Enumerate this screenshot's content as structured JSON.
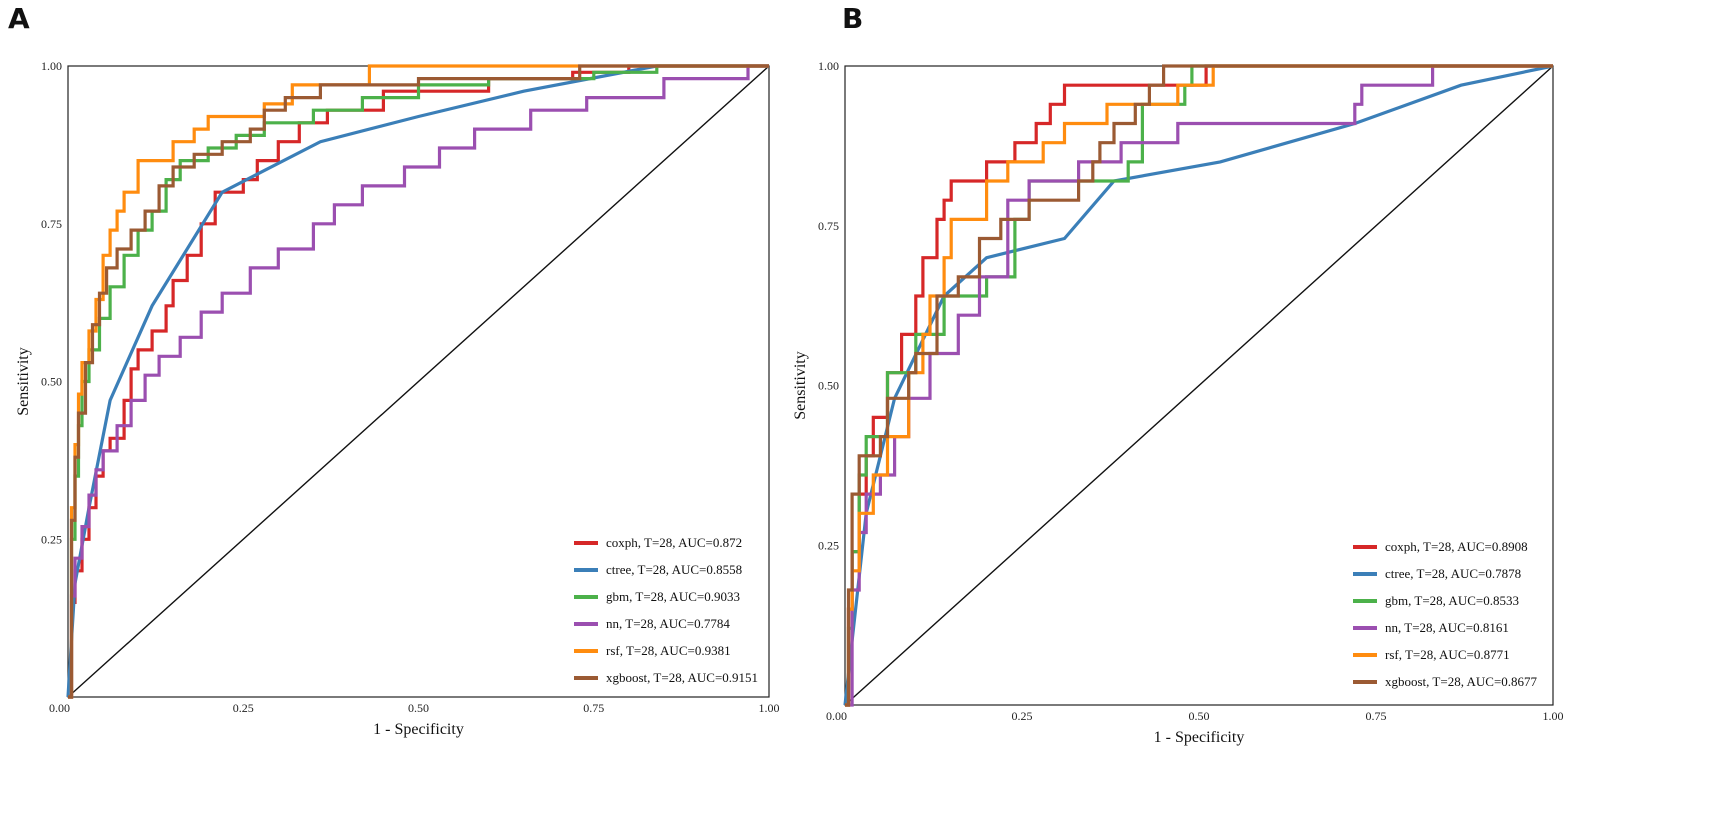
{
  "colors": {
    "coxph": "#d62728",
    "ctree": "#3b7fb8",
    "gbm": "#4cb14a",
    "nn": "#9b4fb0",
    "rsf": "#ff8c0f",
    "xgboost": "#9b5a33"
  },
  "chart_data": [
    {
      "panel": "A",
      "type": "line",
      "xlabel": "1 - Specificity",
      "ylabel": "Sensitivity",
      "xlim": [
        0,
        1
      ],
      "ylim": [
        0,
        1
      ],
      "xticks": [
        "0.00",
        "0.25",
        "0.50",
        "0.75",
        "1.00"
      ],
      "yticks": [
        "0.25",
        "0.50",
        "0.75",
        "1.00"
      ],
      "legend_position": "bottom-right",
      "series": [
        {
          "name": "coxph",
          "label": "coxph, T=28, AUC=0.872",
          "step": true,
          "points": [
            [
              0,
              0
            ],
            [
              0.005,
              0.15
            ],
            [
              0.01,
              0.2
            ],
            [
              0.02,
              0.25
            ],
            [
              0.03,
              0.3
            ],
            [
              0.04,
              0.35
            ],
            [
              0.05,
              0.39
            ],
            [
              0.06,
              0.41
            ],
            [
              0.08,
              0.47
            ],
            [
              0.09,
              0.52
            ],
            [
              0.1,
              0.55
            ],
            [
              0.12,
              0.58
            ],
            [
              0.14,
              0.62
            ],
            [
              0.15,
              0.66
            ],
            [
              0.17,
              0.7
            ],
            [
              0.19,
              0.75
            ],
            [
              0.21,
              0.8
            ],
            [
              0.25,
              0.82
            ],
            [
              0.27,
              0.85
            ],
            [
              0.3,
              0.88
            ],
            [
              0.33,
              0.91
            ],
            [
              0.37,
              0.93
            ],
            [
              0.45,
              0.96
            ],
            [
              0.6,
              0.98
            ],
            [
              0.72,
              0.99
            ],
            [
              0.8,
              1.0
            ],
            [
              1,
              1
            ]
          ]
        },
        {
          "name": "ctree",
          "label": "ctree, T=28, AUC=0.8558",
          "step": false,
          "points": [
            [
              0,
              0
            ],
            [
              0.01,
              0.18
            ],
            [
              0.03,
              0.3
            ],
            [
              0.06,
              0.47
            ],
            [
              0.12,
              0.62
            ],
            [
              0.22,
              0.8
            ],
            [
              0.36,
              0.88
            ],
            [
              0.5,
              0.92
            ],
            [
              0.65,
              0.96
            ],
            [
              0.84,
              1.0
            ],
            [
              1,
              1
            ]
          ]
        },
        {
          "name": "gbm",
          "label": "gbm, T=28, AUC=0.9033",
          "step": true,
          "points": [
            [
              0,
              0
            ],
            [
              0.005,
              0.25
            ],
            [
              0.01,
              0.35
            ],
            [
              0.015,
              0.43
            ],
            [
              0.02,
              0.5
            ],
            [
              0.03,
              0.55
            ],
            [
              0.045,
              0.6
            ],
            [
              0.06,
              0.65
            ],
            [
              0.08,
              0.7
            ],
            [
              0.1,
              0.74
            ],
            [
              0.12,
              0.77
            ],
            [
              0.14,
              0.82
            ],
            [
              0.16,
              0.85
            ],
            [
              0.2,
              0.87
            ],
            [
              0.24,
              0.89
            ],
            [
              0.28,
              0.91
            ],
            [
              0.35,
              0.93
            ],
            [
              0.42,
              0.95
            ],
            [
              0.5,
              0.97
            ],
            [
              0.6,
              0.98
            ],
            [
              0.75,
              0.99
            ],
            [
              0.84,
              1.0
            ],
            [
              1,
              1
            ]
          ]
        },
        {
          "name": "nn",
          "label": "nn, T=28, AUC=0.7784",
          "step": true,
          "points": [
            [
              0,
              0
            ],
            [
              0.005,
              0.16
            ],
            [
              0.01,
              0.22
            ],
            [
              0.02,
              0.27
            ],
            [
              0.03,
              0.32
            ],
            [
              0.04,
              0.36
            ],
            [
              0.05,
              0.39
            ],
            [
              0.07,
              0.43
            ],
            [
              0.09,
              0.47
            ],
            [
              0.11,
              0.51
            ],
            [
              0.13,
              0.54
            ],
            [
              0.16,
              0.57
            ],
            [
              0.19,
              0.61
            ],
            [
              0.22,
              0.64
            ],
            [
              0.26,
              0.68
            ],
            [
              0.3,
              0.71
            ],
            [
              0.35,
              0.75
            ],
            [
              0.38,
              0.78
            ],
            [
              0.42,
              0.81
            ],
            [
              0.48,
              0.84
            ],
            [
              0.53,
              0.87
            ],
            [
              0.58,
              0.9
            ],
            [
              0.66,
              0.93
            ],
            [
              0.74,
              0.95
            ],
            [
              0.85,
              0.98
            ],
            [
              0.97,
              1.0
            ],
            [
              1,
              1
            ]
          ]
        },
        {
          "name": "rsf",
          "label": "rsf, T=28, AUC=0.9381",
          "step": true,
          "points": [
            [
              0,
              0
            ],
            [
              0.005,
              0.3
            ],
            [
              0.01,
              0.4
            ],
            [
              0.015,
              0.48
            ],
            [
              0.02,
              0.53
            ],
            [
              0.03,
              0.58
            ],
            [
              0.04,
              0.63
            ],
            [
              0.05,
              0.7
            ],
            [
              0.06,
              0.74
            ],
            [
              0.07,
              0.77
            ],
            [
              0.08,
              0.8
            ],
            [
              0.1,
              0.85
            ],
            [
              0.15,
              0.88
            ],
            [
              0.18,
              0.9
            ],
            [
              0.2,
              0.92
            ],
            [
              0.28,
              0.94
            ],
            [
              0.32,
              0.97
            ],
            [
              0.43,
              1.0
            ],
            [
              1,
              1
            ]
          ]
        },
        {
          "name": "xgboost",
          "label": "xgboost, T=28, AUC=0.9151",
          "step": true,
          "points": [
            [
              0,
              0
            ],
            [
              0.005,
              0.28
            ],
            [
              0.01,
              0.38
            ],
            [
              0.015,
              0.45
            ],
            [
              0.025,
              0.53
            ],
            [
              0.035,
              0.59
            ],
            [
              0.045,
              0.64
            ],
            [
              0.055,
              0.68
            ],
            [
              0.07,
              0.71
            ],
            [
              0.09,
              0.74
            ],
            [
              0.11,
              0.77
            ],
            [
              0.13,
              0.81
            ],
            [
              0.15,
              0.84
            ],
            [
              0.18,
              0.86
            ],
            [
              0.22,
              0.88
            ],
            [
              0.26,
              0.9
            ],
            [
              0.28,
              0.93
            ],
            [
              0.31,
              0.95
            ],
            [
              0.36,
              0.97
            ],
            [
              0.5,
              0.98
            ],
            [
              0.73,
              1.0
            ],
            [
              1,
              1
            ]
          ]
        }
      ]
    },
    {
      "panel": "B",
      "type": "line",
      "xlabel": "1 - Specificity",
      "ylabel": "Sensitivity",
      "xlim": [
        0,
        1
      ],
      "ylim": [
        0,
        1
      ],
      "xticks": [
        "0.00",
        "0.25",
        "0.50",
        "0.75",
        "1.00"
      ],
      "yticks": [
        "0.25",
        "0.50",
        "0.75",
        "1.00"
      ],
      "legend_position": "bottom-right",
      "series": [
        {
          "name": "coxph",
          "label": "coxph, T=28, AUC=0.8908",
          "step": true,
          "points": [
            [
              0,
              0
            ],
            [
              0.005,
              0.15
            ],
            [
              0.01,
              0.24
            ],
            [
              0.02,
              0.33
            ],
            [
              0.03,
              0.39
            ],
            [
              0.04,
              0.45
            ],
            [
              0.06,
              0.52
            ],
            [
              0.08,
              0.58
            ],
            [
              0.1,
              0.64
            ],
            [
              0.11,
              0.7
            ],
            [
              0.13,
              0.76
            ],
            [
              0.14,
              0.79
            ],
            [
              0.15,
              0.82
            ],
            [
              0.2,
              0.85
            ],
            [
              0.24,
              0.88
            ],
            [
              0.27,
              0.91
            ],
            [
              0.29,
              0.94
            ],
            [
              0.31,
              0.97
            ],
            [
              0.51,
              1.0
            ],
            [
              1,
              1
            ]
          ]
        },
        {
          "name": "ctree",
          "label": "ctree, T=28, AUC=0.7878",
          "step": false,
          "points": [
            [
              0,
              0
            ],
            [
              0.03,
              0.3
            ],
            [
              0.07,
              0.48
            ],
            [
              0.14,
              0.64
            ],
            [
              0.2,
              0.7
            ],
            [
              0.31,
              0.73
            ],
            [
              0.38,
              0.82
            ],
            [
              0.53,
              0.85
            ],
            [
              0.72,
              0.91
            ],
            [
              0.87,
              0.97
            ],
            [
              1,
              1
            ]
          ]
        },
        {
          "name": "gbm",
          "label": "gbm, T=28, AUC=0.8533",
          "step": true,
          "points": [
            [
              0,
              0
            ],
            [
              0.005,
              0.12
            ],
            [
              0.01,
              0.24
            ],
            [
              0.02,
              0.36
            ],
            [
              0.03,
              0.42
            ],
            [
              0.06,
              0.52
            ],
            [
              0.1,
              0.58
            ],
            [
              0.14,
              0.64
            ],
            [
              0.2,
              0.67
            ],
            [
              0.24,
              0.76
            ],
            [
              0.26,
              0.82
            ],
            [
              0.4,
              0.85
            ],
            [
              0.42,
              0.94
            ],
            [
              0.48,
              0.97
            ],
            [
              0.49,
              1.0
            ],
            [
              1,
              1
            ]
          ]
        },
        {
          "name": "nn",
          "label": "nn, T=28, AUC=0.8161",
          "step": true,
          "points": [
            [
              0,
              0
            ],
            [
              0.01,
              0.18
            ],
            [
              0.02,
              0.27
            ],
            [
              0.03,
              0.33
            ],
            [
              0.05,
              0.36
            ],
            [
              0.07,
              0.42
            ],
            [
              0.09,
              0.48
            ],
            [
              0.12,
              0.55
            ],
            [
              0.16,
              0.61
            ],
            [
              0.19,
              0.67
            ],
            [
              0.23,
              0.79
            ],
            [
              0.26,
              0.82
            ],
            [
              0.33,
              0.85
            ],
            [
              0.39,
              0.88
            ],
            [
              0.47,
              0.91
            ],
            [
              0.72,
              0.94
            ],
            [
              0.73,
              0.97
            ],
            [
              0.83,
              1.0
            ],
            [
              1,
              1
            ]
          ]
        },
        {
          "name": "rsf",
          "label": "rsf, T=28, AUC=0.8771",
          "step": true,
          "points": [
            [
              0,
              0
            ],
            [
              0.005,
              0.15
            ],
            [
              0.01,
              0.21
            ],
            [
              0.02,
              0.3
            ],
            [
              0.04,
              0.36
            ],
            [
              0.06,
              0.42
            ],
            [
              0.09,
              0.52
            ],
            [
              0.11,
              0.58
            ],
            [
              0.12,
              0.64
            ],
            [
              0.14,
              0.7
            ],
            [
              0.15,
              0.76
            ],
            [
              0.2,
              0.82
            ],
            [
              0.23,
              0.85
            ],
            [
              0.28,
              0.88
            ],
            [
              0.31,
              0.91
            ],
            [
              0.37,
              0.94
            ],
            [
              0.47,
              0.97
            ],
            [
              0.52,
              1.0
            ],
            [
              1,
              1
            ]
          ]
        },
        {
          "name": "xgboost",
          "label": "xgboost, T=28, AUC=0.8677",
          "step": true,
          "points": [
            [
              0,
              0
            ],
            [
              0.005,
              0.18
            ],
            [
              0.01,
              0.33
            ],
            [
              0.02,
              0.39
            ],
            [
              0.05,
              0.42
            ],
            [
              0.06,
              0.48
            ],
            [
              0.09,
              0.52
            ],
            [
              0.1,
              0.55
            ],
            [
              0.13,
              0.64
            ],
            [
              0.16,
              0.67
            ],
            [
              0.19,
              0.73
            ],
            [
              0.22,
              0.76
            ],
            [
              0.26,
              0.79
            ],
            [
              0.33,
              0.82
            ],
            [
              0.35,
              0.85
            ],
            [
              0.36,
              0.88
            ],
            [
              0.38,
              0.91
            ],
            [
              0.41,
              0.94
            ],
            [
              0.43,
              0.97
            ],
            [
              0.45,
              1.0
            ],
            [
              1,
              1
            ]
          ]
        }
      ]
    }
  ]
}
